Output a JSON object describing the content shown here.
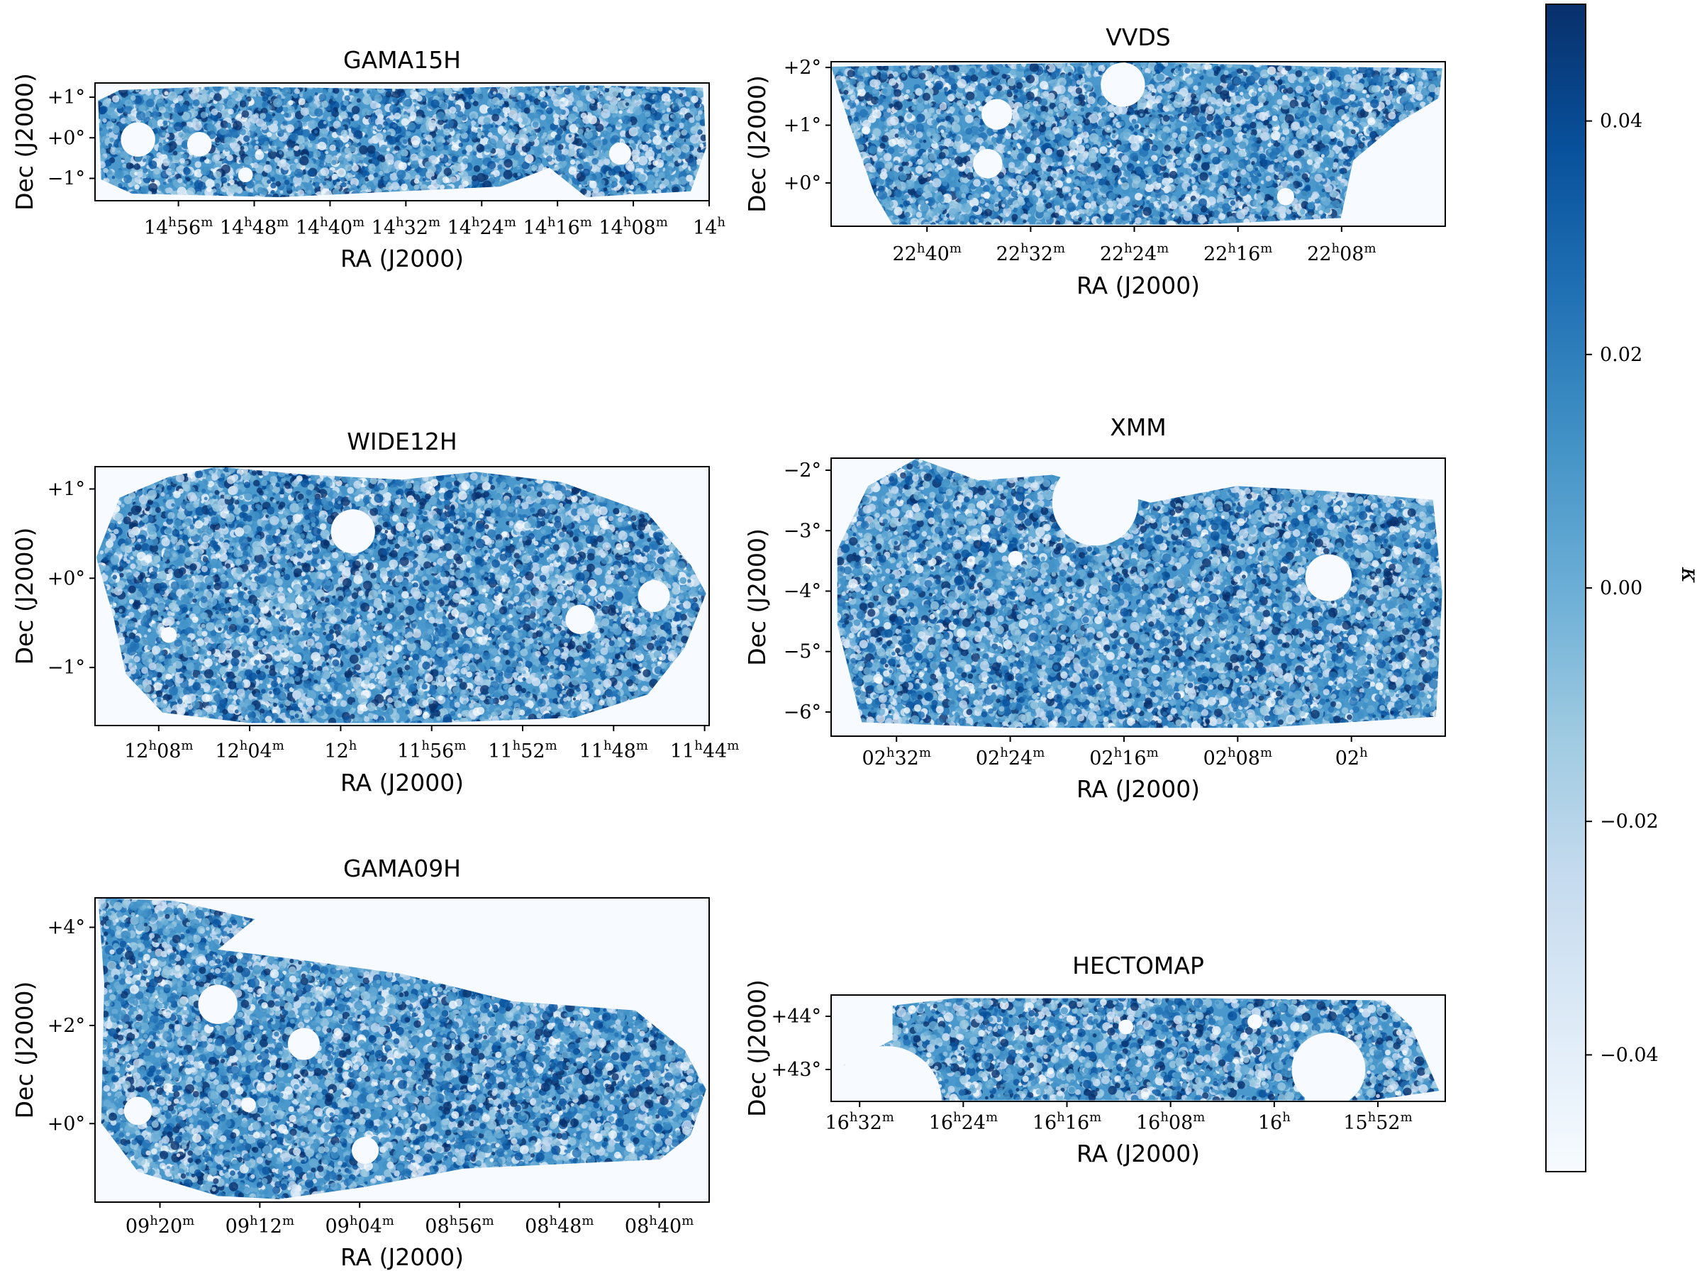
{
  "chart_data": [
    {
      "type": "heatmap",
      "title": "GAMA15H",
      "xlabel": "RA (J2000)",
      "ylabel": "Dec (J2000)",
      "xticks": [
        {
          "label": "14h56m",
          "h": "14",
          "m": "56"
        },
        {
          "label": "14h48m",
          "h": "14",
          "m": "48"
        },
        {
          "label": "14h40m",
          "h": "14",
          "m": "40"
        },
        {
          "label": "14h32m",
          "h": "14",
          "m": "32"
        },
        {
          "label": "14h24m",
          "h": "14",
          "m": "24"
        },
        {
          "label": "14h16m",
          "h": "14",
          "m": "16"
        },
        {
          "label": "14h08m",
          "h": "14",
          "m": "08"
        },
        {
          "label": "14h",
          "h": "14",
          "m": ""
        }
      ],
      "yticks": [
        "+1°",
        "+0°",
        "−1°"
      ],
      "ra_range_hours": [
        15.08,
        14.0
      ],
      "dec_range_deg": [
        -1.55,
        1.35
      ]
    },
    {
      "type": "heatmap",
      "title": "VVDS",
      "xlabel": "RA (J2000)",
      "ylabel": "Dec (J2000)",
      "xticks": [
        {
          "label": "22h40m",
          "h": "22",
          "m": "40"
        },
        {
          "label": "22h32m",
          "h": "22",
          "m": "32"
        },
        {
          "label": "22h24m",
          "h": "22",
          "m": "24"
        },
        {
          "label": "22h16m",
          "h": "22",
          "m": "16"
        },
        {
          "label": "22h08m",
          "h": "22",
          "m": "08"
        }
      ],
      "yticks": [
        "+2°",
        "+1°",
        "+0°"
      ],
      "ra_range_hours": [
        22.79,
        22.0
      ],
      "dec_range_deg": [
        -0.75,
        2.1
      ]
    },
    {
      "type": "heatmap",
      "title": "WIDE12H",
      "xlabel": "RA (J2000)",
      "ylabel": "Dec (J2000)",
      "xticks": [
        {
          "label": "12h08m",
          "h": "12",
          "m": "08"
        },
        {
          "label": "12h04m",
          "h": "12",
          "m": "04"
        },
        {
          "label": "12h",
          "h": "12",
          "m": ""
        },
        {
          "label": "11h56m",
          "h": "11",
          "m": "56"
        },
        {
          "label": "11h52m",
          "h": "11",
          "m": "52"
        },
        {
          "label": "11h48m",
          "h": "11",
          "m": "48"
        },
        {
          "label": "11h44m",
          "h": "11",
          "m": "44"
        }
      ],
      "yticks": [
        "+1°",
        "+0°",
        "−1°"
      ],
      "ra_range_hours": [
        12.18,
        11.73
      ],
      "dec_range_deg": [
        -1.65,
        1.25
      ]
    },
    {
      "type": "heatmap",
      "title": "XMM",
      "xlabel": "RA (J2000)",
      "ylabel": "Dec (J2000)",
      "xticks": [
        {
          "label": "02h32m",
          "h": "02",
          "m": "32"
        },
        {
          "label": "02h24m",
          "h": "02",
          "m": "24"
        },
        {
          "label": "02h16m",
          "h": "02",
          "m": "16"
        },
        {
          "label": "02h08m",
          "h": "02",
          "m": "08"
        },
        {
          "label": "02h",
          "h": "02",
          "m": ""
        }
      ],
      "yticks": [
        "−2°",
        "−3°",
        "−4°",
        "−5°",
        "−6°"
      ],
      "ra_range_hours": [
        2.61,
        1.89
      ],
      "dec_range_deg": [
        -6.4,
        -1.8
      ]
    },
    {
      "type": "heatmap",
      "title": "GAMA09H",
      "xlabel": "RA (J2000)",
      "ylabel": "Dec (J2000)",
      "xticks": [
        {
          "label": "09h20m",
          "h": "09",
          "m": "20"
        },
        {
          "label": "09h12m",
          "h": "09",
          "m": "12"
        },
        {
          "label": "09h04m",
          "h": "09",
          "m": "04"
        },
        {
          "label": "08h56m",
          "h": "08",
          "m": "56"
        },
        {
          "label": "08h48m",
          "h": "08",
          "m": "48"
        },
        {
          "label": "08h40m",
          "h": "08",
          "m": "40"
        }
      ],
      "yticks": [
        "+4°",
        "+2°",
        "+0°"
      ],
      "ra_range_hours": [
        9.42,
        8.6
      ],
      "dec_range_deg": [
        -1.6,
        4.6
      ]
    },
    {
      "type": "heatmap",
      "title": "HECTOMAP",
      "xlabel": "RA (J2000)",
      "ylabel": "Dec (J2000)",
      "xticks": [
        {
          "label": "16h32m",
          "h": "16",
          "m": "32"
        },
        {
          "label": "16h24m",
          "h": "16",
          "m": "24"
        },
        {
          "label": "16h16m",
          "h": "16",
          "m": "16"
        },
        {
          "label": "16h08m",
          "h": "16",
          "m": "08"
        },
        {
          "label": "16h",
          "h": "16",
          "m": ""
        },
        {
          "label": "15h52m",
          "h": "15",
          "m": "52"
        }
      ],
      "yticks": [
        "+44°",
        "+43°"
      ],
      "ra_range_hours": [
        16.57,
        15.78
      ],
      "dec_range_deg": [
        42.4,
        44.4
      ]
    }
  ],
  "colorbar": {
    "label": "κ",
    "range": [
      -0.05,
      0.05
    ],
    "ticks": [
      {
        "value": 0.04,
        "label": "0.04"
      },
      {
        "value": 0.02,
        "label": "0.02"
      },
      {
        "value": 0.0,
        "label": "0.00"
      },
      {
        "value": -0.02,
        "label": "−0.02"
      },
      {
        "value": -0.04,
        "label": "−0.04"
      }
    ],
    "colormap": "Blues",
    "color_low": "#f7fbff",
    "color_mid": "#6baed6",
    "color_high": "#08306b"
  }
}
